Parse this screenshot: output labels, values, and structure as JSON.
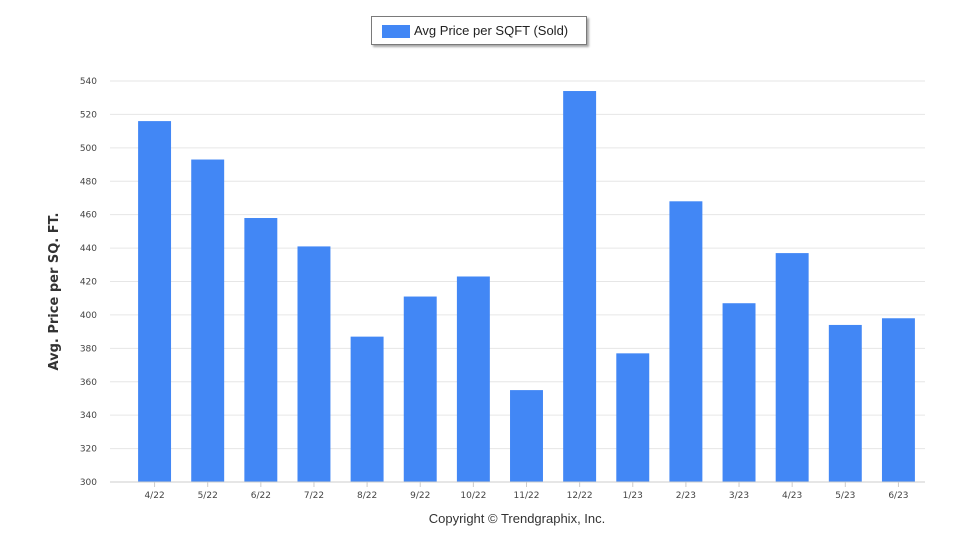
{
  "legend": {
    "label": "Avg Price per SQFT (Sold)"
  },
  "footer": {
    "copyright": "Copyright © Trendgraphix, Inc."
  },
  "chart_data": {
    "type": "bar",
    "title": "",
    "xlabel": "",
    "ylabel": "Avg. Price per SQ. FT.",
    "ylim": [
      300,
      540
    ],
    "yticks": [
      300,
      320,
      340,
      360,
      380,
      400,
      420,
      440,
      460,
      480,
      500,
      520,
      540
    ],
    "grid": true,
    "legend_position": "top-center",
    "bar_color": "#4287f5",
    "categories": [
      "4/22",
      "5/22",
      "6/22",
      "7/22",
      "8/22",
      "9/22",
      "10/22",
      "11/22",
      "12/22",
      "1/23",
      "2/23",
      "3/23",
      "4/23",
      "5/23",
      "6/23"
    ],
    "series": [
      {
        "name": "Avg Price per SQFT (Sold)",
        "values": [
          516,
          493,
          458,
          441,
          387,
          411,
          423,
          355,
          534,
          377,
          468,
          407,
          437,
          394,
          398
        ]
      }
    ]
  }
}
